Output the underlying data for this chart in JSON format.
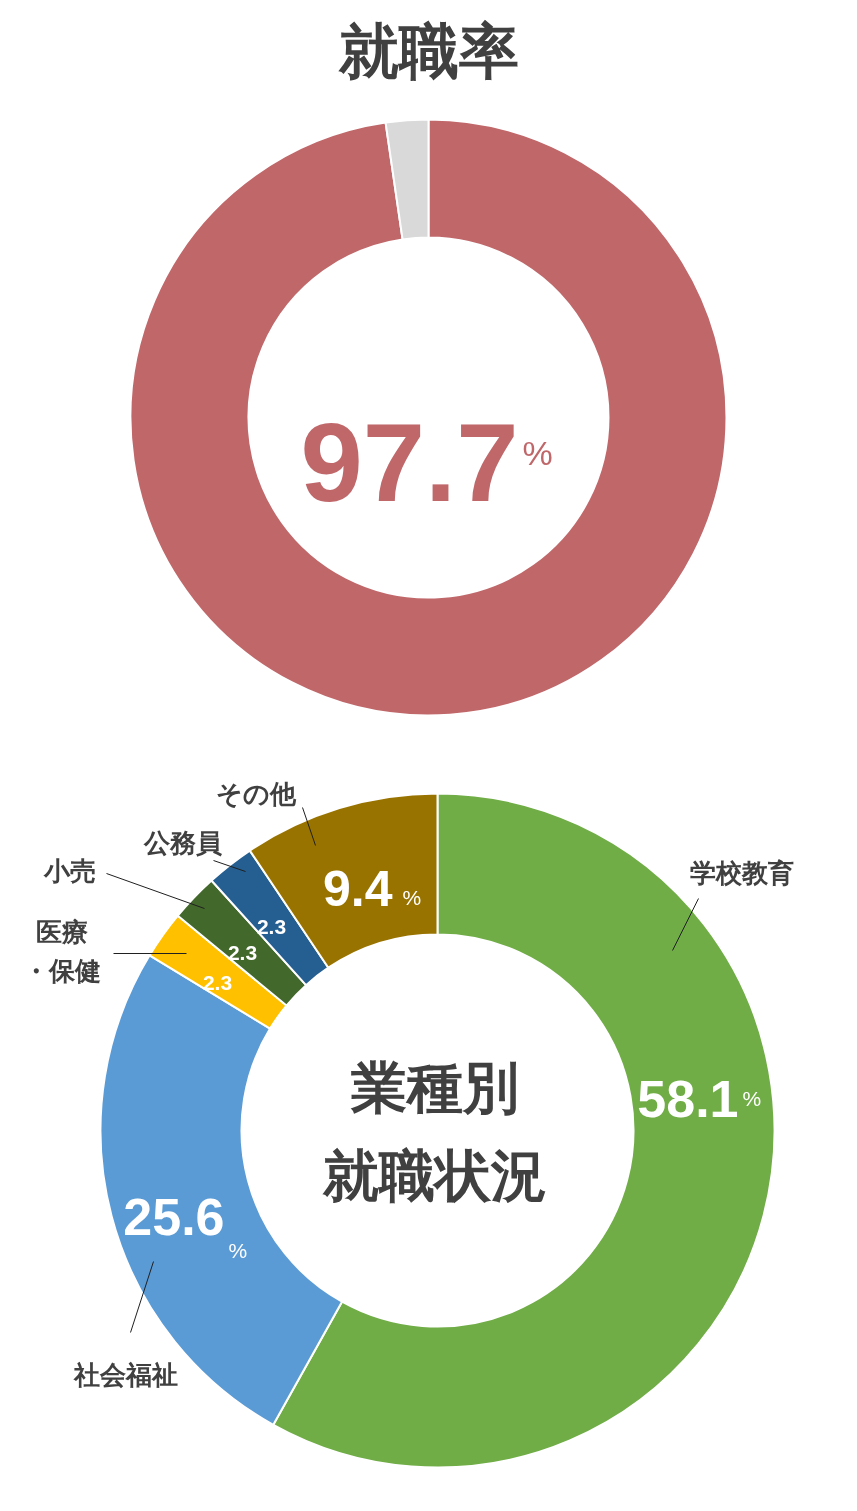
{
  "chart_data": [
    {
      "type": "donut",
      "title": "就職率",
      "categories": [
        null,
        null
      ],
      "values": [
        97.7,
        2.3
      ],
      "colors": [
        "#c0676a",
        "#d9d9d9"
      ],
      "value_labels": [
        "97.7%",
        null
      ]
    },
    {
      "type": "donut",
      "title": "業種別就職状況",
      "categories": [
        "学校教育",
        "社会福祉",
        "医療・保健",
        "小売",
        "公務員",
        "その他"
      ],
      "values": [
        58.1,
        25.6,
        2.3,
        2.3,
        2.3,
        9.4
      ],
      "colors": [
        "#70ad47",
        "#5b9bd5",
        "#ffc000",
        "#43682b",
        "#255e91",
        "#997300"
      ],
      "value_labels": [
        "58.1%",
        "25.6%",
        "2.3",
        "2.3",
        "2.3",
        "9.4%"
      ]
    }
  ]
}
